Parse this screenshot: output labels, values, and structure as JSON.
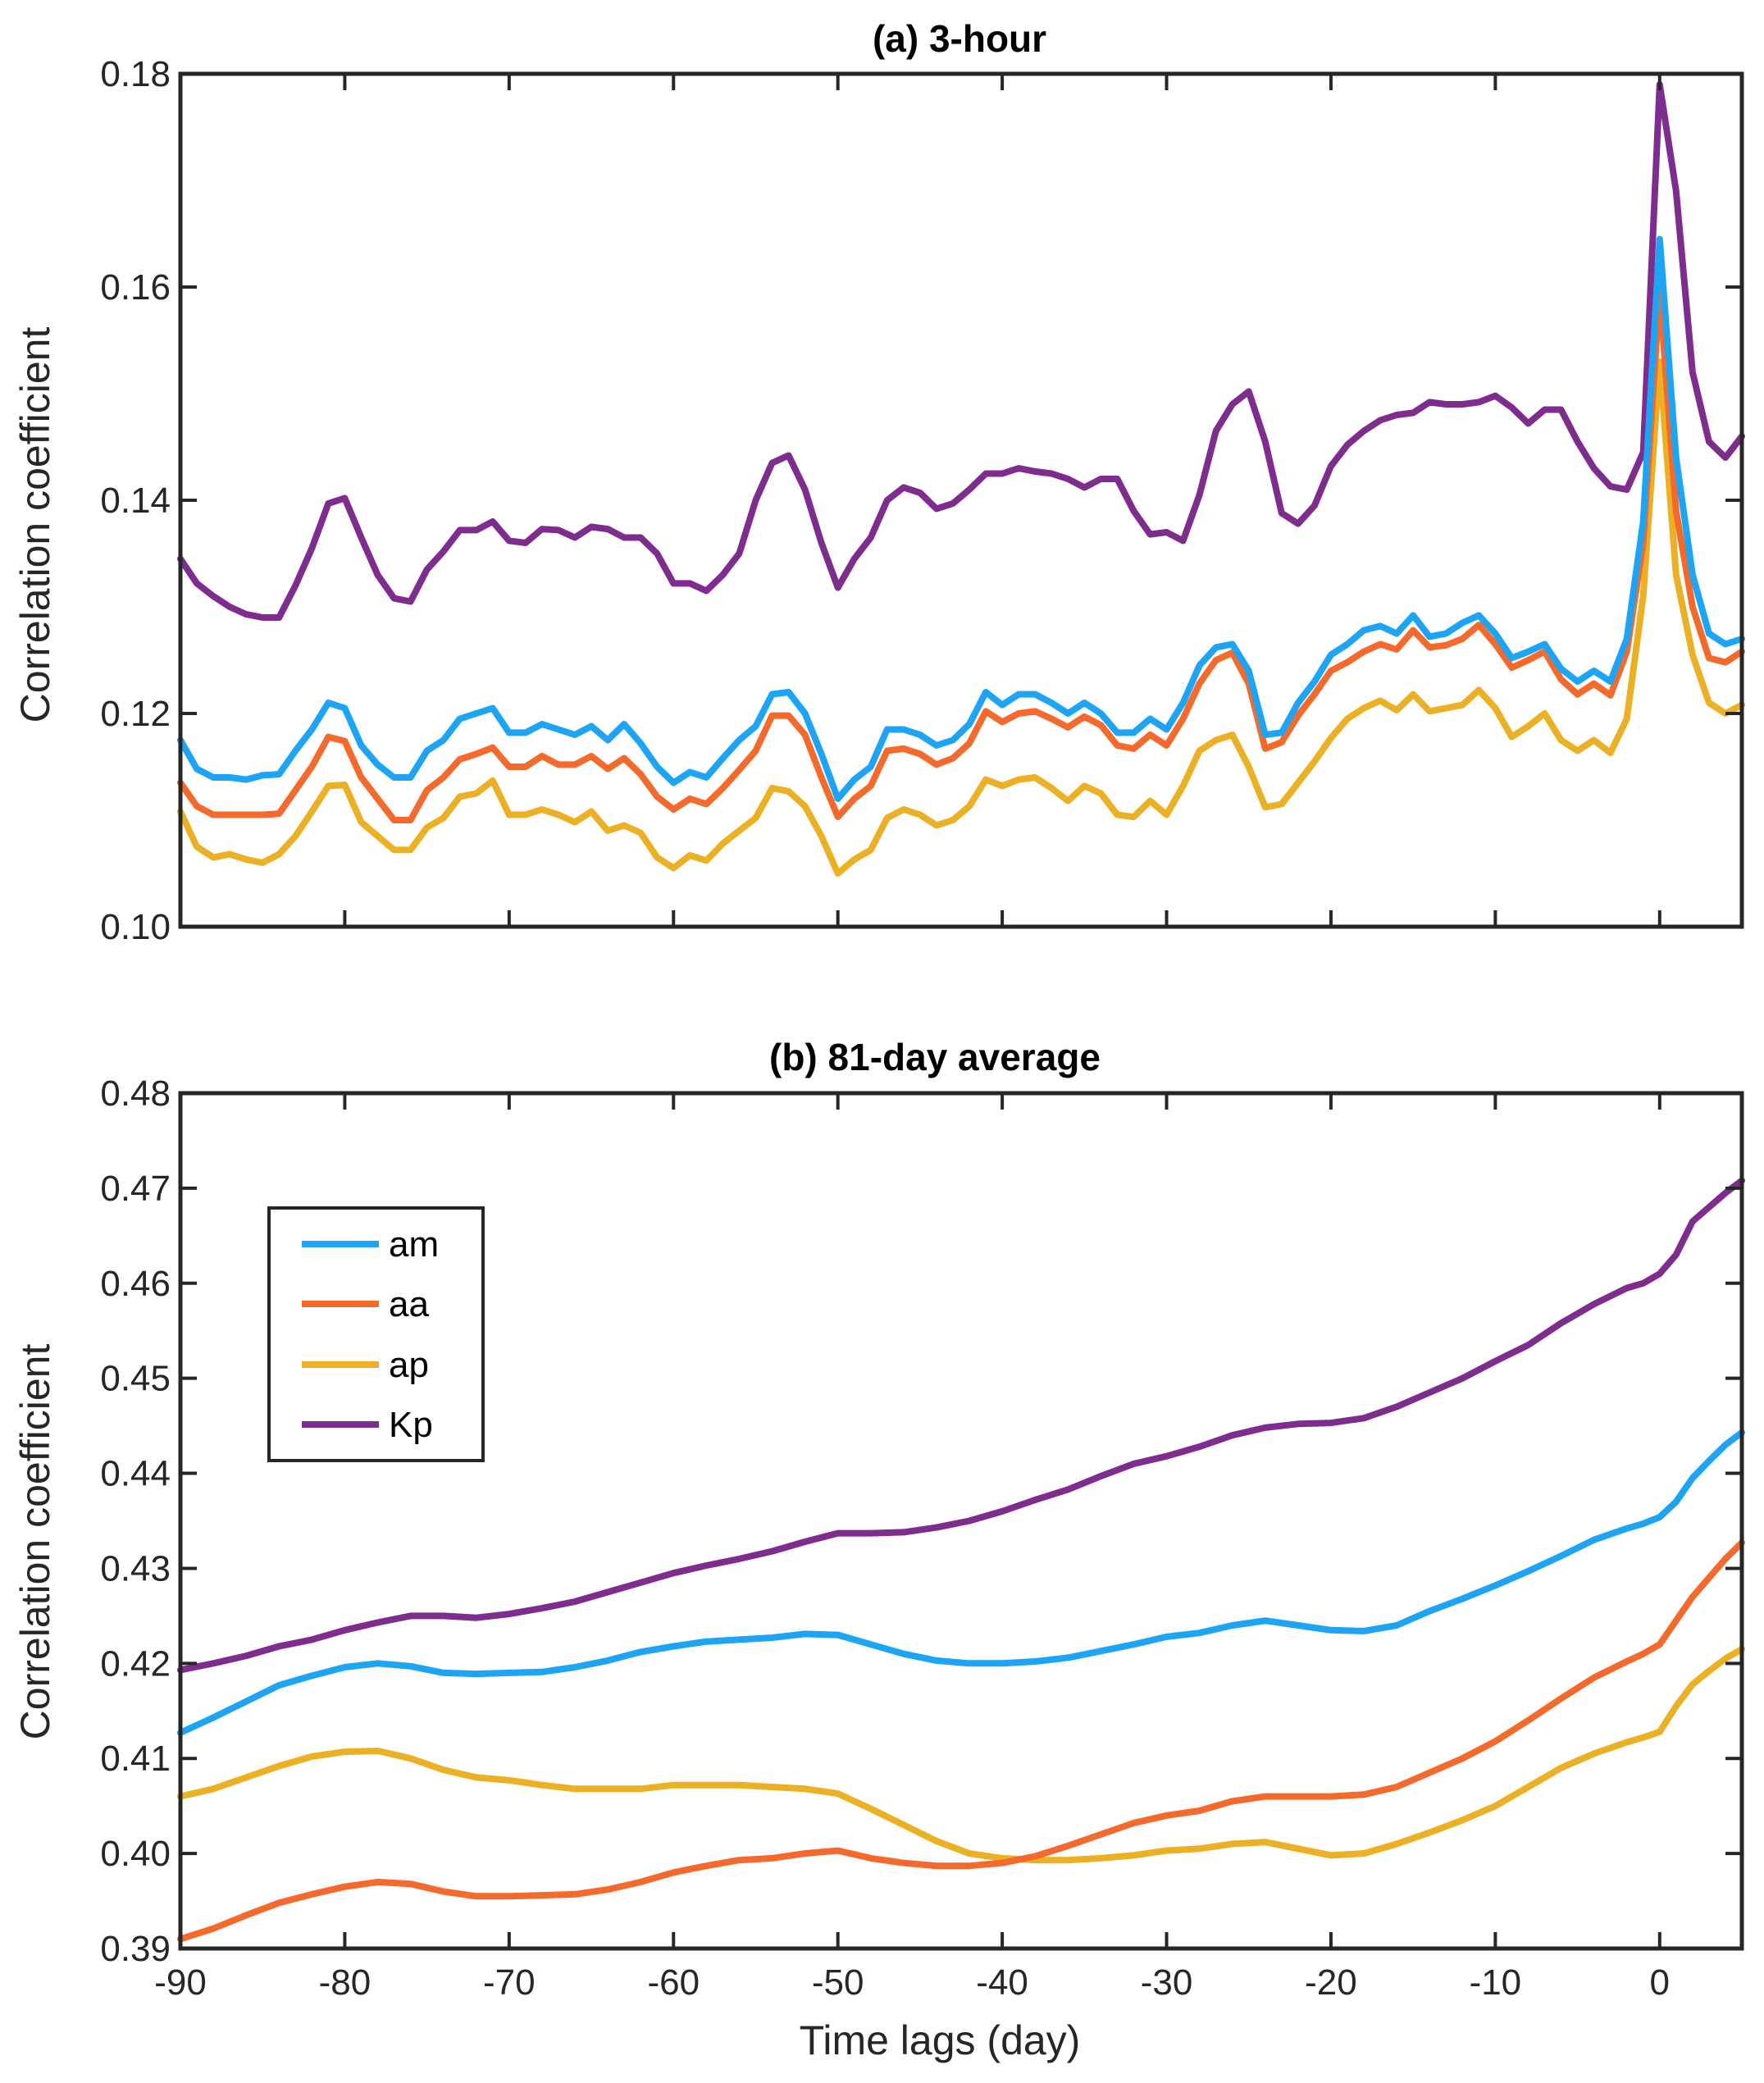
{
  "colors": {
    "am": "#1ea4f4",
    "aa": "#f46a2c",
    "ap": "#ebb023",
    "Kp": "#7e2d8e",
    "axis": "#262626"
  },
  "x_axis": {
    "label": "Time lags (day)",
    "ticks": [
      "-90",
      "-80",
      "-70",
      "-60",
      "-50",
      "-40",
      "-30",
      "-20",
      "-10",
      "0"
    ]
  },
  "panel_a": {
    "title": "(a) 3-hour",
    "ylabel": "Correlation coefficient",
    "yticks": [
      "0.10",
      "0.12",
      "0.14",
      "0.16",
      "0.18"
    ]
  },
  "panel_b": {
    "title": "(b) 81-day average",
    "ylabel": "Correlation coefficient",
    "yticks": [
      "0.39",
      "0.40",
      "0.41",
      "0.42",
      "0.43",
      "0.44",
      "0.45",
      "0.46",
      "0.47",
      "0.48"
    ]
  },
  "legend": {
    "entries": [
      "am",
      "aa",
      "ap",
      "Kp"
    ],
    "placement": "upper-left of panel b"
  },
  "chart_data": [
    {
      "type": "line",
      "title": "(a) 3-hour",
      "xlabel": "",
      "ylabel": "Correlation coefficient",
      "xlim": [
        -90,
        5
      ],
      "ylim": [
        0.1,
        0.18
      ],
      "grid": false,
      "x": [
        -90,
        -89,
        -88,
        -87,
        -86,
        -85,
        -84,
        -83,
        -82,
        -81,
        -80,
        -79,
        -78,
        -77,
        -76,
        -75,
        -74,
        -73,
        -72,
        -71,
        -70,
        -69,
        -68,
        -67,
        -66,
        -65,
        -64,
        -63,
        -62,
        -61,
        -60,
        -59,
        -58,
        -57,
        -56,
        -55,
        -54,
        -53,
        -52,
        -51,
        -50,
        -49,
        -48,
        -47,
        -46,
        -45,
        -44,
        -43,
        -42,
        -41,
        -40,
        -39,
        -38,
        -37,
        -36,
        -35,
        -34,
        -33,
        -32,
        -31,
        -30,
        -29,
        -28,
        -27,
        -26,
        -25,
        -24,
        -23,
        -22,
        -21,
        -20,
        -19,
        -18,
        -17,
        -16,
        -15,
        -14,
        -13,
        -12,
        -11,
        -10,
        -9,
        -8,
        -7,
        -6,
        -5,
        -4,
        -3,
        -2,
        -1,
        0,
        1,
        2,
        3,
        4,
        5
      ],
      "series": [
        {
          "name": "am",
          "values": [
            0.1175,
            0.1148,
            0.114,
            0.114,
            0.1138,
            0.1142,
            0.1143,
            0.1165,
            0.1185,
            0.121,
            0.1205,
            0.117,
            0.1152,
            0.114,
            0.114,
            0.1165,
            0.1175,
            0.1195,
            0.12,
            0.1205,
            0.1182,
            0.1182,
            0.119,
            0.1185,
            0.118,
            0.1188,
            0.1175,
            0.119,
            0.1172,
            0.115,
            0.1135,
            0.1145,
            0.114,
            0.1158,
            0.1175,
            0.1188,
            0.1218,
            0.122,
            0.12,
            0.1162,
            0.112,
            0.1138,
            0.115,
            0.1185,
            0.1185,
            0.118,
            0.117,
            0.1175,
            0.119,
            0.122,
            0.1208,
            0.1218,
            0.1218,
            0.121,
            0.12,
            0.121,
            0.12,
            0.1182,
            0.1182,
            0.1195,
            0.1185,
            0.121,
            0.1245,
            0.1262,
            0.1265,
            0.124,
            0.118,
            0.1182,
            0.121,
            0.123,
            0.1255,
            0.1265,
            0.1278,
            0.1282,
            0.1275,
            0.1292,
            0.1272,
            0.1275,
            0.1285,
            0.1292,
            0.1275,
            0.1252,
            0.1258,
            0.1265,
            0.1242,
            0.123,
            0.124,
            0.123,
            0.127,
            0.138,
            0.1645,
            0.144,
            0.133,
            0.1275,
            0.1265,
            0.127
          ]
        },
        {
          "name": "aa",
          "values": [
            0.1135,
            0.1113,
            0.1105,
            0.1105,
            0.1105,
            0.1105,
            0.1106,
            0.1128,
            0.115,
            0.1178,
            0.1174,
            0.114,
            0.112,
            0.11,
            0.11,
            0.1128,
            0.114,
            0.1157,
            0.1162,
            0.1168,
            0.115,
            0.115,
            0.116,
            0.1152,
            0.1152,
            0.116,
            0.1148,
            0.1158,
            0.1143,
            0.1122,
            0.111,
            0.112,
            0.1115,
            0.113,
            0.1147,
            0.1165,
            0.1198,
            0.1198,
            0.118,
            0.114,
            0.1103,
            0.112,
            0.1132,
            0.1165,
            0.1167,
            0.1162,
            0.1152,
            0.1158,
            0.1172,
            0.1202,
            0.1192,
            0.12,
            0.1202,
            0.1195,
            0.1187,
            0.1197,
            0.1189,
            0.117,
            0.1167,
            0.118,
            0.117,
            0.1195,
            0.1228,
            0.125,
            0.1257,
            0.1228,
            0.1167,
            0.1173,
            0.1198,
            0.1218,
            0.124,
            0.1248,
            0.1258,
            0.1265,
            0.126,
            0.1278,
            0.1262,
            0.1264,
            0.127,
            0.1283,
            0.1265,
            0.1243,
            0.125,
            0.1258,
            0.1232,
            0.1218,
            0.1228,
            0.1217,
            0.1258,
            0.136,
            0.1595,
            0.139,
            0.13,
            0.1252,
            0.1248,
            0.1258
          ]
        },
        {
          "name": "ap",
          "values": [
            0.1108,
            0.1075,
            0.1065,
            0.1068,
            0.1063,
            0.106,
            0.1068,
            0.1085,
            0.1108,
            0.1132,
            0.1133,
            0.1098,
            0.1085,
            0.1072,
            0.1072,
            0.1093,
            0.1102,
            0.1122,
            0.1125,
            0.1137,
            0.1105,
            0.1105,
            0.111,
            0.1105,
            0.1098,
            0.1108,
            0.109,
            0.1095,
            0.1088,
            0.1065,
            0.1055,
            0.1067,
            0.1062,
            0.1078,
            0.109,
            0.1102,
            0.113,
            0.1127,
            0.1113,
            0.1085,
            0.105,
            0.1063,
            0.1072,
            0.1102,
            0.111,
            0.1105,
            0.1095,
            0.11,
            0.1113,
            0.1138,
            0.1132,
            0.1138,
            0.114,
            0.113,
            0.1118,
            0.1132,
            0.1125,
            0.1105,
            0.1103,
            0.1118,
            0.1105,
            0.1132,
            0.1165,
            0.1175,
            0.118,
            0.115,
            0.1112,
            0.1115,
            0.1135,
            0.1155,
            0.1177,
            0.1195,
            0.1205,
            0.1212,
            0.1203,
            0.1218,
            0.1202,
            0.1205,
            0.1208,
            0.1222,
            0.1205,
            0.1178,
            0.1188,
            0.12,
            0.1175,
            0.1165,
            0.1175,
            0.1163,
            0.1195,
            0.131,
            0.153,
            0.133,
            0.1255,
            0.121,
            0.12,
            0.1208
          ]
        },
        {
          "name": "Kp",
          "values": [
            0.1345,
            0.1322,
            0.131,
            0.13,
            0.1293,
            0.129,
            0.129,
            0.132,
            0.1355,
            0.1397,
            0.1402,
            0.1365,
            0.133,
            0.1308,
            0.1305,
            0.1335,
            0.1352,
            0.1372,
            0.1372,
            0.138,
            0.1362,
            0.136,
            0.1373,
            0.1372,
            0.1365,
            0.1375,
            0.1373,
            0.1365,
            0.1365,
            0.135,
            0.1322,
            0.1322,
            0.1315,
            0.133,
            0.135,
            0.14,
            0.1435,
            0.1442,
            0.141,
            0.136,
            0.1318,
            0.1345,
            0.1365,
            0.14,
            0.1412,
            0.1407,
            0.1392,
            0.1397,
            0.141,
            0.1425,
            0.1425,
            0.143,
            0.1427,
            0.1425,
            0.142,
            0.1412,
            0.142,
            0.142,
            0.139,
            0.1368,
            0.137,
            0.1362,
            0.1405,
            0.1465,
            0.149,
            0.1502,
            0.1455,
            0.1388,
            0.1378,
            0.1395,
            0.1432,
            0.1452,
            0.1465,
            0.1475,
            0.148,
            0.1482,
            0.1492,
            0.149,
            0.149,
            0.1492,
            0.1498,
            0.1487,
            0.1472,
            0.1485,
            0.1485,
            0.1455,
            0.143,
            0.1413,
            0.141,
            0.1445,
            0.179,
            0.169,
            0.152,
            0.1455,
            0.144,
            0.146
          ]
        }
      ]
    },
    {
      "type": "line",
      "title": "(b) 81-day average",
      "xlabel": "Time lags (day)",
      "ylabel": "Correlation coefficient",
      "xlim": [
        -90,
        5
      ],
      "ylim": [
        0.39,
        0.48
      ],
      "grid": false,
      "x": [
        -90,
        -88,
        -86,
        -84,
        -82,
        -80,
        -78,
        -76,
        -74,
        -72,
        -70,
        -68,
        -66,
        -64,
        -62,
        -60,
        -58,
        -56,
        -54,
        -52,
        -50,
        -48,
        -46,
        -44,
        -42,
        -40,
        -38,
        -36,
        -34,
        -32,
        -30,
        -28,
        -26,
        -24,
        -22,
        -20,
        -18,
        -16,
        -14,
        -12,
        -10,
        -8,
        -6,
        -4,
        -2,
        -1,
        0,
        1,
        2,
        3,
        4,
        5
      ],
      "series": [
        {
          "name": "am",
          "values": [
            0.4127,
            0.4143,
            0.416,
            0.4177,
            0.4187,
            0.4196,
            0.42,
            0.4197,
            0.419,
            0.4189,
            0.419,
            0.4191,
            0.4196,
            0.4203,
            0.4212,
            0.4218,
            0.4223,
            0.4225,
            0.4227,
            0.4231,
            0.423,
            0.422,
            0.421,
            0.4203,
            0.42,
            0.42,
            0.4202,
            0.4206,
            0.4213,
            0.422,
            0.4228,
            0.4232,
            0.424,
            0.4245,
            0.424,
            0.4235,
            0.4234,
            0.424,
            0.4255,
            0.4268,
            0.4282,
            0.4297,
            0.4313,
            0.433,
            0.4342,
            0.4347,
            0.4354,
            0.437,
            0.4395,
            0.4413,
            0.443,
            0.4443
          ]
        },
        {
          "name": "aa",
          "values": [
            0.391,
            0.3921,
            0.3935,
            0.3948,
            0.3957,
            0.3965,
            0.397,
            0.3968,
            0.396,
            0.3955,
            0.3955,
            0.3956,
            0.3957,
            0.3962,
            0.397,
            0.398,
            0.3987,
            0.3993,
            0.3995,
            0.4,
            0.4003,
            0.3995,
            0.399,
            0.3987,
            0.3987,
            0.399,
            0.3997,
            0.4008,
            0.402,
            0.4032,
            0.404,
            0.4045,
            0.4055,
            0.406,
            0.406,
            0.406,
            0.4062,
            0.407,
            0.4085,
            0.41,
            0.4118,
            0.414,
            0.4163,
            0.4185,
            0.4202,
            0.421,
            0.422,
            0.4245,
            0.427,
            0.429,
            0.431,
            0.4327
          ]
        },
        {
          "name": "ap",
          "values": [
            0.406,
            0.4068,
            0.408,
            0.4092,
            0.4102,
            0.4107,
            0.4108,
            0.41,
            0.4088,
            0.408,
            0.4077,
            0.4072,
            0.4068,
            0.4068,
            0.4068,
            0.4072,
            0.4072,
            0.4072,
            0.407,
            0.4068,
            0.4063,
            0.4047,
            0.403,
            0.4013,
            0.4,
            0.3995,
            0.3993,
            0.3993,
            0.3995,
            0.3998,
            0.4003,
            0.4005,
            0.401,
            0.4012,
            0.4005,
            0.3998,
            0.4,
            0.401,
            0.4022,
            0.4035,
            0.405,
            0.407,
            0.409,
            0.4105,
            0.4117,
            0.4122,
            0.4128,
            0.4155,
            0.4178,
            0.4192,
            0.4205,
            0.4215
          ]
        },
        {
          "name": "Kp",
          "values": [
            0.4193,
            0.42,
            0.4208,
            0.4218,
            0.4225,
            0.4235,
            0.4243,
            0.425,
            0.425,
            0.4248,
            0.4252,
            0.4258,
            0.4265,
            0.4275,
            0.4285,
            0.4295,
            0.4303,
            0.431,
            0.4318,
            0.4328,
            0.4337,
            0.4337,
            0.4338,
            0.4343,
            0.435,
            0.436,
            0.4372,
            0.4383,
            0.4397,
            0.441,
            0.4418,
            0.4428,
            0.444,
            0.4448,
            0.4452,
            0.4453,
            0.4458,
            0.447,
            0.4485,
            0.45,
            0.4518,
            0.4535,
            0.4558,
            0.4578,
            0.4595,
            0.46,
            0.461,
            0.463,
            0.4665,
            0.468,
            0.4695,
            0.4708
          ]
        }
      ]
    }
  ]
}
